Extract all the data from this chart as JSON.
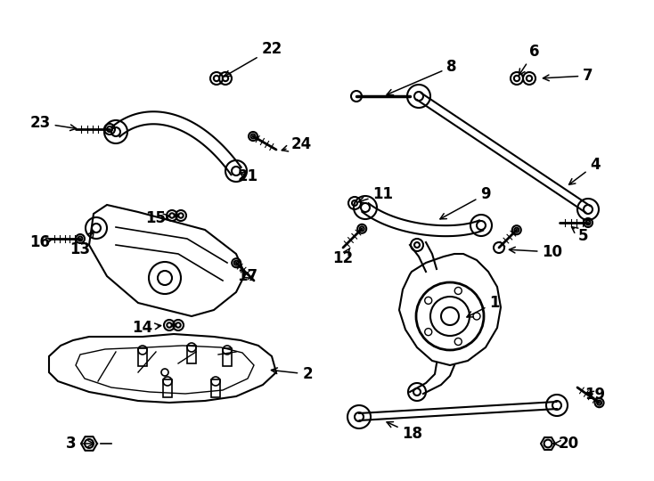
{
  "background_color": "#ffffff",
  "line_color": "#000000",
  "figsize": [
    7.34,
    5.4
  ],
  "dpi": 100,
  "label_fontsize": 12
}
